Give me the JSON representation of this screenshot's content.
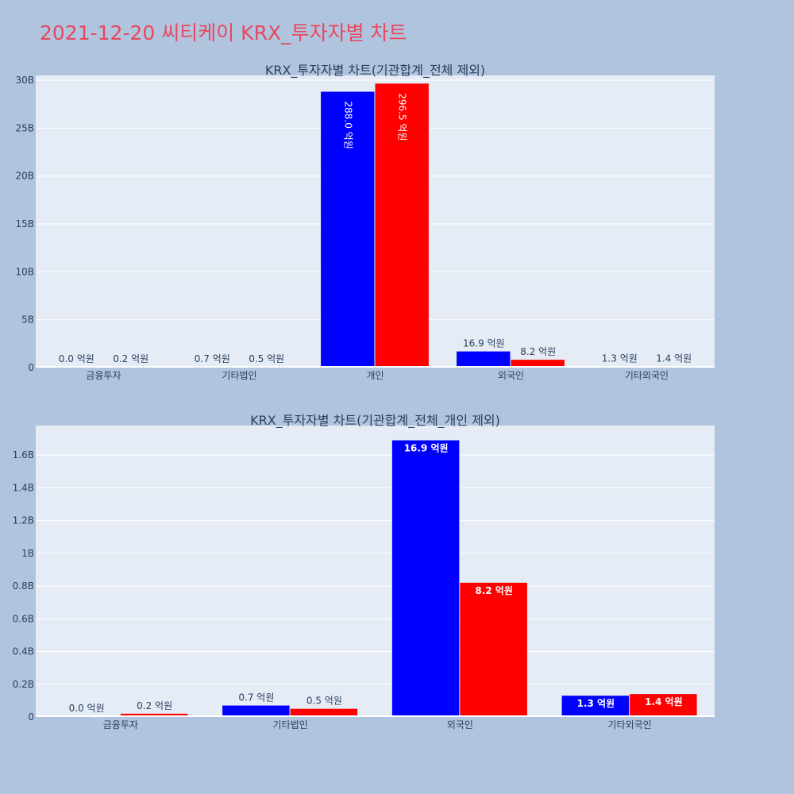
{
  "page_title": "2021-12-20 씨티케이 KRX_투자자별 차트",
  "colors": {
    "background": "#b0c4de",
    "plot_bg": "#e5ecf6",
    "title": "#e8475f",
    "text": "#2a3f5f",
    "series_buy": "#0000ff",
    "series_sell": "#ff0000"
  },
  "chart_data": [
    {
      "type": "bar",
      "title": "KRX_투자자별 차트(기관합계_전체 제외)",
      "categories": [
        "금융투자",
        "기타법인",
        "개인",
        "외국인",
        "기타외국인"
      ],
      "ylim": [
        0,
        30500000000
      ],
      "yticks": [
        0,
        5000000000,
        10000000000,
        15000000000,
        20000000000,
        25000000000,
        30000000000
      ],
      "ytick_labels": [
        "0",
        "5B",
        "10B",
        "15B",
        "20B",
        "25B",
        "30B"
      ],
      "grid": true,
      "legend": "none",
      "series": [
        {
          "color": "#0000ff",
          "values": [
            0,
            70000000,
            28800000000,
            1690000000,
            130000000
          ],
          "labels": [
            "0.0 억원",
            "0.7 억원",
            "288.0 억원",
            "16.9 억원",
            "1.3 억원"
          ]
        },
        {
          "color": "#ff0000",
          "values": [
            20000000,
            50000000,
            29650000000,
            820000000,
            140000000
          ],
          "labels": [
            "0.2 억원",
            "0.5 억원",
            "296.5 억원",
            "8.2 억원",
            "1.4 억원"
          ]
        }
      ]
    },
    {
      "type": "bar",
      "title": "KRX_투자자별 차트(기관합계_전체_개인 제외)",
      "categories": [
        "금융투자",
        "기타법인",
        "외국인",
        "기타외국인"
      ],
      "ylim": [
        0,
        1780000000
      ],
      "yticks": [
        0,
        200000000,
        400000000,
        600000000,
        800000000,
        1000000000,
        1200000000,
        1400000000,
        1600000000
      ],
      "ytick_labels": [
        "0",
        "0.2B",
        "0.4B",
        "0.6B",
        "0.8B",
        "1B",
        "1.2B",
        "1.4B",
        "1.6B"
      ],
      "grid": true,
      "legend": "none",
      "series": [
        {
          "color": "#0000ff",
          "values": [
            0,
            70000000,
            1690000000,
            130000000
          ],
          "labels": [
            "0.0 억원",
            "0.7 억원",
            "16.9 억원",
            "1.3 억원"
          ]
        },
        {
          "color": "#ff0000",
          "values": [
            20000000,
            50000000,
            820000000,
            140000000
          ],
          "labels": [
            "0.2 억원",
            "0.5 억원",
            "8.2 억원",
            "1.4 억원"
          ]
        }
      ]
    }
  ]
}
